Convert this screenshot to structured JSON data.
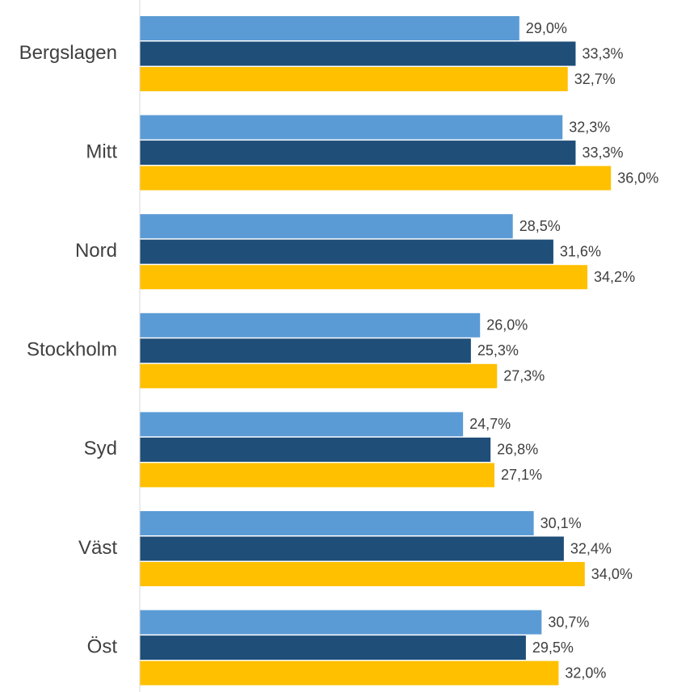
{
  "chart_data": {
    "type": "hbar",
    "categories": [
      "Bergslagen",
      "Mitt",
      "Nord",
      "Stockholm",
      "Syd",
      "Väst",
      "Öst"
    ],
    "series": [
      {
        "color": "#5b9bd5",
        "values": [
          29.0,
          32.3,
          28.5,
          26.0,
          24.7,
          30.1,
          30.7
        ],
        "value_labels": [
          "29,0%",
          "32,3%",
          "28,5%",
          "26,0%",
          "24,7%",
          "30,1%",
          "30,7%"
        ]
      },
      {
        "color": "#1f4e79",
        "values": [
          33.3,
          33.3,
          31.6,
          25.3,
          26.8,
          32.4,
          29.5
        ],
        "value_labels": [
          "33,3%",
          "33,3%",
          "31,6%",
          "25,3%",
          "26,8%",
          "32,4%",
          "29,5%"
        ]
      },
      {
        "color": "#ffc000",
        "values": [
          32.7,
          36.0,
          34.2,
          27.3,
          27.1,
          34.0,
          32.0
        ],
        "value_labels": [
          "32,7%",
          "36,0%",
          "34,2%",
          "27,3%",
          "27,1%",
          "34,0%",
          "32,0%"
        ]
      }
    ],
    "xlim": [
      0,
      40
    ]
  }
}
